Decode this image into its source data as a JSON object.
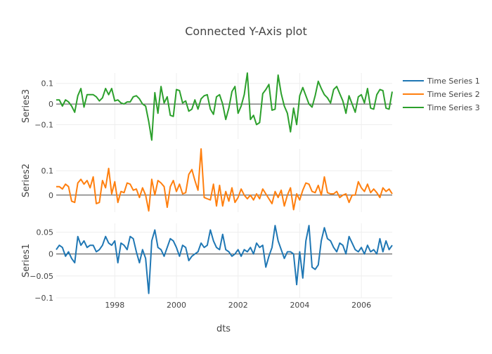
{
  "chart_data": {
    "type": "line",
    "title": "Connected Y-Axis plot",
    "xlabel": "dts",
    "xlim": [
      1996.1,
      2007.0
    ],
    "x_ticks": [
      1998,
      2000,
      2002,
      2004,
      2006
    ],
    "x_tick_labels": [
      "1998",
      "2000",
      "2002",
      "2004",
      "2006"
    ],
    "grid": true,
    "legend_position": "top-right",
    "colors": {
      "Time Series 1": "#1f77b4",
      "Time Series 2": "#ff7f0e",
      "Time Series 3": "#2ca02c"
    },
    "panels": [
      {
        "ylabel": "Series3",
        "ylim": [
          -0.17,
          0.15
        ],
        "y_ticks": [
          0.1,
          0,
          -0.1
        ],
        "y_tick_labels": [
          "0.1",
          "0",
          "−0.1"
        ]
      },
      {
        "ylabel": "Series2",
        "ylim": [
          -0.07,
          0.19
        ],
        "y_ticks": [
          0.1,
          0
        ],
        "y_tick_labels": [
          "0.1",
          "0"
        ]
      },
      {
        "ylabel": "Series1",
        "ylim": [
          -0.1,
          0.07
        ],
        "y_ticks": [
          0.05,
          0,
          -0.05,
          -0.1
        ],
        "y_tick_labels": [
          "0.05",
          "0",
          "−0.05",
          "−0.1"
        ]
      }
    ],
    "series": [
      {
        "name": "Time Series 1",
        "x": [
          1996.1,
          1996.2,
          1996.3,
          1996.4,
          1996.5,
          1996.6,
          1996.7,
          1996.8,
          1996.9,
          1997.0,
          1997.1,
          1997.2,
          1997.3,
          1997.4,
          1997.5,
          1997.6,
          1997.7,
          1997.8,
          1997.9,
          1998.0,
          1998.1,
          1998.2,
          1998.3,
          1998.4,
          1998.5,
          1998.6,
          1998.7,
          1998.8,
          1998.9,
          1999.0,
          1999.1,
          1999.2,
          1999.3,
          1999.4,
          1999.5,
          1999.6,
          1999.7,
          1999.8,
          1999.9,
          2000.0,
          2000.1,
          2000.2,
          2000.3,
          2000.4,
          2000.5,
          2000.6,
          2000.7,
          2000.8,
          2000.9,
          2001.0,
          2001.1,
          2001.2,
          2001.3,
          2001.4,
          2001.5,
          2001.6,
          2001.7,
          2001.8,
          2001.9,
          2002.0,
          2002.1,
          2002.2,
          2002.3,
          2002.4,
          2002.5,
          2002.6,
          2002.7,
          2002.8,
          2002.9,
          2003.0,
          2003.1,
          2003.2,
          2003.3,
          2003.4,
          2003.5,
          2003.6,
          2003.7,
          2003.8,
          2003.9,
          2004.0,
          2004.1,
          2004.2,
          2004.3,
          2004.4,
          2004.5,
          2004.6,
          2004.7,
          2004.8,
          2004.9,
          2005.0,
          2005.1,
          2005.2,
          2005.3,
          2005.4,
          2005.5,
          2005.6,
          2005.7,
          2005.8,
          2005.9,
          2006.0,
          2006.1,
          2006.2,
          2006.3,
          2006.4,
          2006.5,
          2006.6,
          2006.7,
          2006.8,
          2006.9,
          2007.0
        ],
        "y": [
          0.01,
          0.02,
          0.015,
          -0.005,
          0.005,
          -0.01,
          -0.02,
          0.04,
          0.02,
          0.03,
          0.015,
          0.02,
          0.02,
          0.005,
          0.01,
          0.02,
          0.04,
          0.025,
          0.02,
          0.03,
          -0.02,
          0.025,
          0.02,
          0.01,
          0.04,
          0.035,
          0.005,
          -0.02,
          0.01,
          -0.01,
          -0.09,
          0.03,
          0.055,
          0.015,
          0.01,
          -0.005,
          0.015,
          0.035,
          0.03,
          0.015,
          -0.005,
          0.02,
          0.015,
          -0.015,
          -0.005,
          0.0,
          0.005,
          0.025,
          0.015,
          0.02,
          0.055,
          0.03,
          0.015,
          0.01,
          0.045,
          0.01,
          0.005,
          -0.005,
          0.0,
          0.01,
          -0.005,
          0.01,
          0.005,
          0.015,
          0.0,
          0.025,
          0.015,
          0.02,
          -0.03,
          -0.005,
          0.015,
          0.065,
          0.03,
          0.01,
          -0.01,
          0.005,
          0.005,
          0.0,
          -0.07,
          0.005,
          -0.055,
          0.03,
          0.065,
          -0.03,
          -0.035,
          -0.025,
          0.03,
          0.06,
          0.035,
          0.03,
          0.015,
          0.005,
          0.025,
          0.02,
          0.0,
          0.04,
          0.025,
          0.01,
          0.005,
          0.015,
          0.0,
          0.02,
          0.005,
          0.01,
          0.0,
          0.035,
          0.005,
          0.03,
          0.01,
          0.02
        ],
        "y_extra": []
      },
      {
        "name": "Time Series 2",
        "x": [],
        "y": []
      },
      {
        "name": "Time Series 3",
        "x": [],
        "y": []
      }
    ]
  }
}
